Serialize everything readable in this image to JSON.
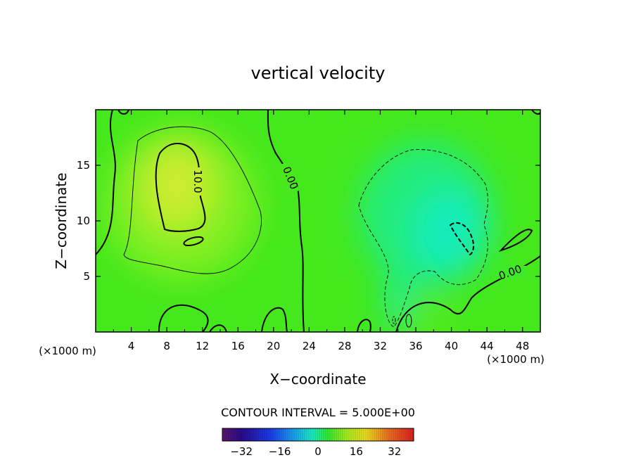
{
  "chart_data": {
    "type": "heatmap",
    "title": "vertical velocity",
    "xlabel": "X−coordinate",
    "ylabel": "Z−coordinate",
    "x_unit_left": "(×1000 m)",
    "x_unit_right": "(×1000 m)",
    "xlim": [
      0,
      50
    ],
    "ylim": [
      0,
      20
    ],
    "x_ticks": [
      4,
      8,
      12,
      16,
      20,
      24,
      28,
      32,
      36,
      40,
      44,
      48
    ],
    "y_ticks": [
      5,
      10,
      15
    ],
    "contour_interval_text": "CONTOUR INTERVAL = 5.000E+00",
    "contour_labels": [
      "10.0",
      "0.00",
      "0.00"
    ],
    "colorbar": {
      "min": -40,
      "max": 40,
      "ticks": [
        -32,
        -16,
        0,
        16,
        32
      ],
      "tick_labels": [
        "−32",
        "−16",
        "0",
        "16",
        "32"
      ]
    },
    "features": [
      {
        "kind": "max",
        "x": 8.5,
        "z": 13,
        "value": 12
      },
      {
        "kind": "min",
        "x": 39,
        "z": 10,
        "value": -6
      }
    ]
  }
}
